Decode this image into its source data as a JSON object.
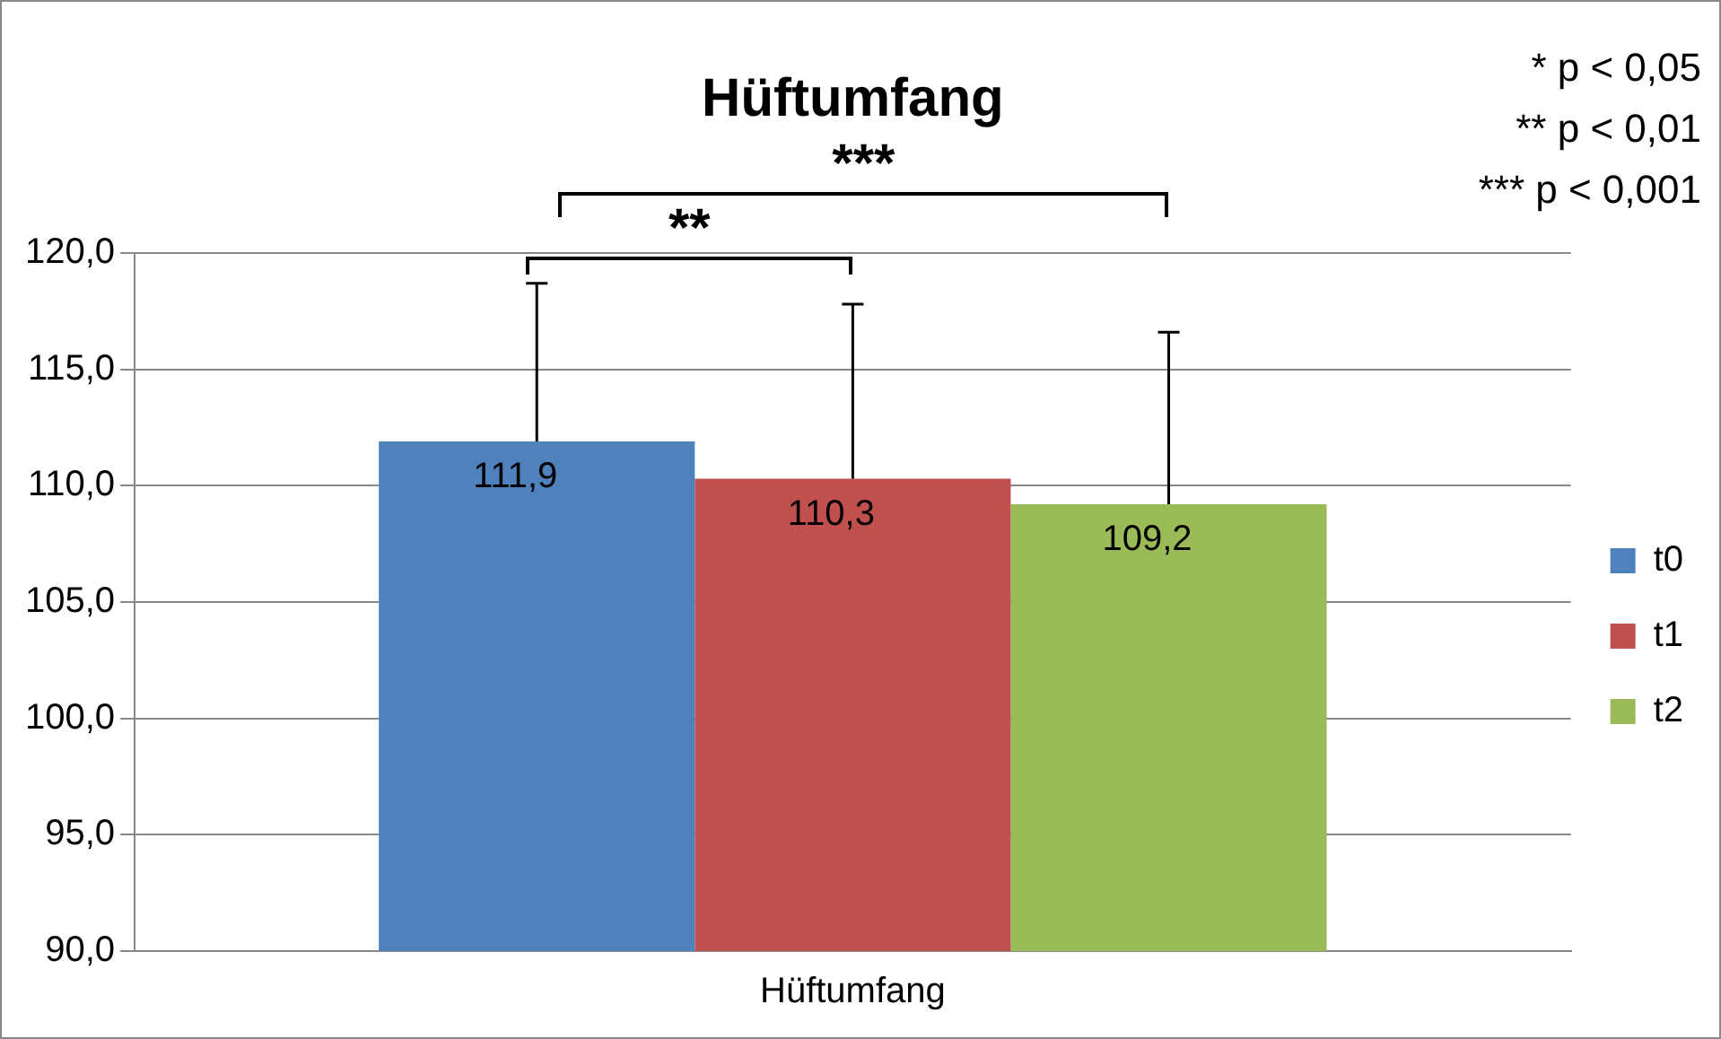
{
  "chart_data": {
    "type": "bar",
    "title": "Hüftumfang",
    "categories": [
      "Hüftumfang"
    ],
    "series": [
      {
        "name": "t0",
        "color": "#4f81bd",
        "values": [
          111.9
        ],
        "errors": [
          [
            111.9,
            118.7
          ]
        ],
        "value_labels": [
          "111,9"
        ]
      },
      {
        "name": "t1",
        "color": "#c0504d",
        "values": [
          110.3
        ],
        "errors": [
          [
            110.3,
            117.8
          ]
        ],
        "value_labels": [
          "110,3"
        ]
      },
      {
        "name": "t2",
        "color": "#9bbb59",
        "values": [
          109.2
        ],
        "errors": [
          [
            109.2,
            116.6
          ]
        ],
        "value_labels": [
          "109,2"
        ]
      }
    ],
    "ylim": [
      90,
      120
    ],
    "yticks": [
      {
        "value": 90,
        "label": "90,0"
      },
      {
        "value": 95,
        "label": "95,0"
      },
      {
        "value": 100,
        "label": "100,0"
      },
      {
        "value": 105,
        "label": "105,0"
      },
      {
        "value": 110,
        "label": "110,0"
      },
      {
        "value": 115,
        "label": "115,0"
      },
      {
        "value": 120,
        "label": "120,0"
      }
    ],
    "grid": "y",
    "legend": "right",
    "annotations": [
      "* p < 0,05",
      "** p < 0,01",
      "*** p < 0,001",
      "**",
      "***"
    ]
  }
}
